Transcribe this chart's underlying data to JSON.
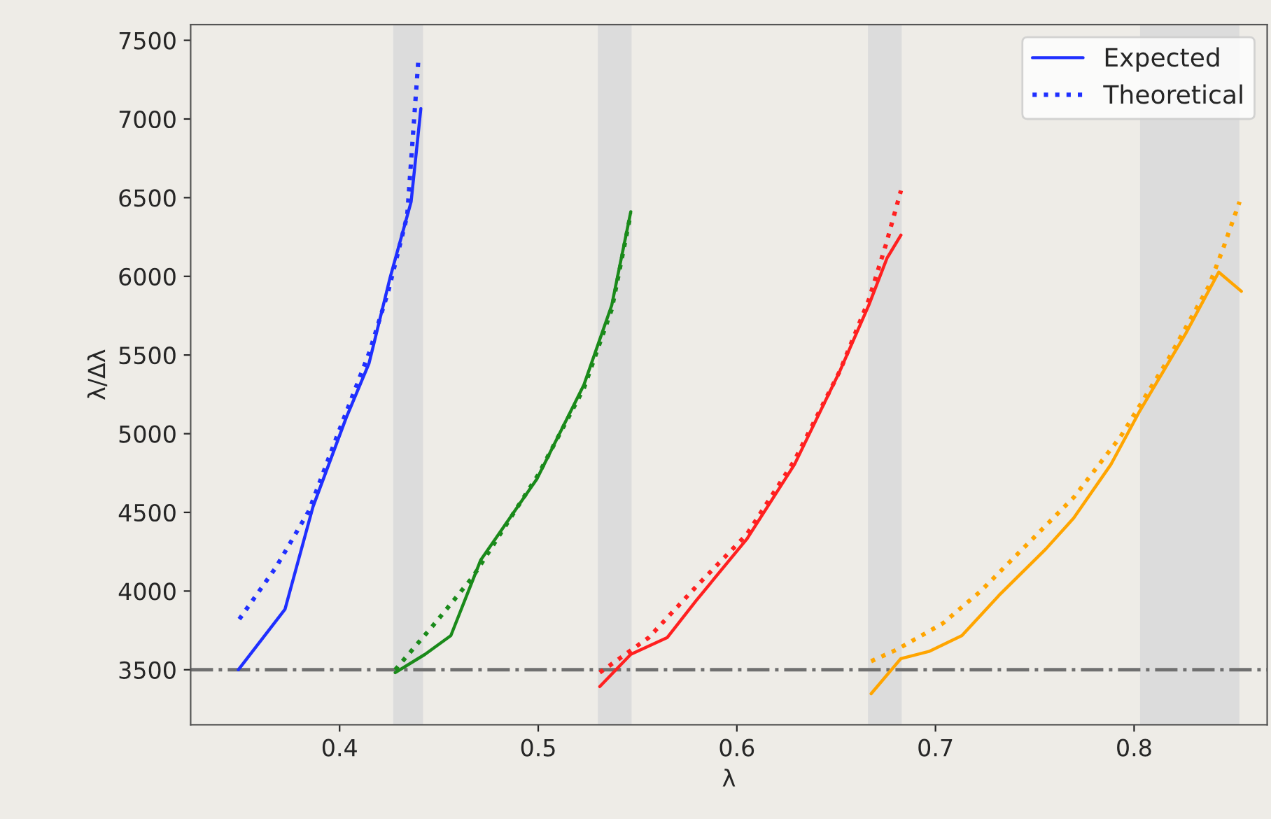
{
  "chart_data": {
    "type": "line",
    "xlabel": "λ",
    "ylabel": "λ/Δλ",
    "xlim": [
      0.325,
      0.867
    ],
    "ylim": [
      3150,
      7600
    ],
    "xticks": [
      0.4,
      0.5,
      0.6,
      0.7,
      0.8
    ],
    "yticks": [
      3500,
      4000,
      4500,
      5000,
      5500,
      6000,
      6500,
      7000,
      7500
    ],
    "grid": false,
    "legend": "top right",
    "series": [
      {
        "name": "Expected",
        "color": "#1f2fff",
        "line_style": "solid",
        "x": [
          0.349,
          0.3725,
          0.3866,
          0.4033,
          0.4148,
          0.4254,
          0.436,
          0.4409
        ],
        "values": [
          3500,
          3884,
          4536,
          5101,
          5447,
          5991,
          6474,
          7066
        ]
      },
      {
        "name": "Theoretical",
        "color": "#1f2fff",
        "line_style": "dotted",
        "x": [
          0.3495,
          0.368,
          0.3845,
          0.3986,
          0.415,
          0.4245,
          0.434,
          0.4396
        ],
        "values": [
          3821,
          4152,
          4509,
          4982,
          5518,
          5905,
          6384,
          7367
        ]
      },
      {
        "color": "#1a8a1a",
        "line_style": "solid",
        "x": [
          0.428,
          0.443,
          0.456,
          0.471,
          0.4994,
          0.523,
          0.537,
          0.5466
        ],
        "values": [
          3482,
          3598,
          3717,
          4196,
          4714,
          5311,
          5816,
          6411
        ]
      },
      {
        "color": "#1a8a1a",
        "line_style": "dotted",
        "x": [
          0.428,
          0.448,
          0.467,
          0.5,
          0.523,
          0.537,
          0.5466
        ],
        "values": [
          3500,
          3795,
          4089,
          4740,
          5290,
          5790,
          6400
        ]
      },
      {
        "color": "#ff2020",
        "line_style": "solid",
        "x": [
          0.531,
          0.5466,
          0.565,
          0.5794,
          0.605,
          0.629,
          0.652,
          0.6664,
          0.6756,
          0.6826
        ],
        "values": [
          3393,
          3598,
          3705,
          3938,
          4330,
          4804,
          5402,
          5816,
          6116,
          6262
        ]
      },
      {
        "color": "#ff2020",
        "line_style": "dotted",
        "x": [
          0.531,
          0.5557,
          0.5794,
          0.605,
          0.629,
          0.652,
          0.6664,
          0.675,
          0.6826
        ],
        "values": [
          3482,
          3705,
          4027,
          4360,
          4830,
          5402,
          5850,
          6200,
          6545
        ]
      },
      {
        "color": "#ffa500",
        "line_style": "solid",
        "x": [
          0.6676,
          0.6826,
          0.6967,
          0.7133,
          0.732,
          0.7556,
          0.7696,
          0.7883,
          0.8024,
          0.826,
          0.8426,
          0.854
        ],
        "values": [
          3348,
          3571,
          3616,
          3717,
          3973,
          4268,
          4464,
          4804,
          5134,
          5637,
          6027,
          5905
        ]
      },
      {
        "color": "#ffa500",
        "line_style": "dotted",
        "x": [
          0.6676,
          0.6805,
          0.7037,
          0.7228,
          0.746,
          0.7698,
          0.7932,
          0.8165,
          0.8376,
          0.8447,
          0.8531
        ],
        "values": [
          3554,
          3628,
          3795,
          4000,
          4295,
          4598,
          4982,
          5458,
          5938,
          6173,
          6474
        ]
      }
    ],
    "bands": [
      {
        "axis": "x",
        "from": 0.427,
        "to": 0.442,
        "color": "#dcdcdc"
      },
      {
        "axis": "x",
        "from": 0.53,
        "to": 0.547,
        "color": "#dcdcdc"
      },
      {
        "axis": "x",
        "from": 0.666,
        "to": 0.683,
        "color": "#dcdcdc"
      },
      {
        "axis": "x",
        "from": 0.803,
        "to": 0.853,
        "color": "#dcdcdc"
      }
    ],
    "ref_lines": [
      {
        "axis": "y",
        "value": 3500,
        "color": "#707070",
        "line_style": "dashdot"
      }
    ]
  }
}
